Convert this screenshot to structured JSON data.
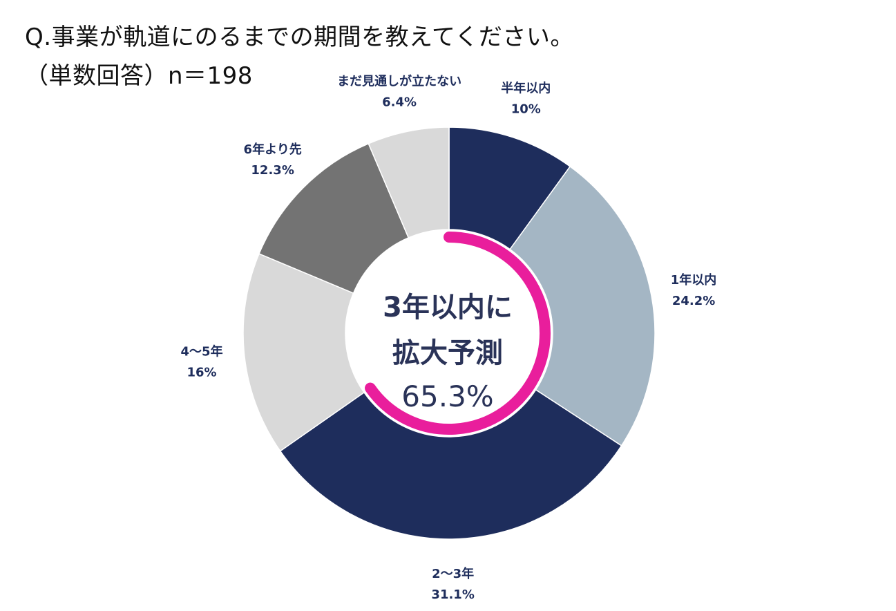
{
  "title": {
    "line1": "Q.事業が軌道にのるまでの期間を教えてください。",
    "line2": "（単数回答）n＝198"
  },
  "chart_data": {
    "type": "pie",
    "variant": "donut",
    "categories": [
      "半年以内",
      "1年以内",
      "2〜3年",
      "4〜5年",
      "6年より先",
      "まだ見通しが立たない"
    ],
    "values": [
      10,
      24.2,
      31.1,
      16,
      12.3,
      6.4
    ],
    "value_labels": [
      "10%",
      "24.2%",
      "31.1%",
      "16%",
      "12.3%",
      "6.4%"
    ],
    "colors": [
      "#1e2d5c",
      "#a4b6c4",
      "#1e2d5c",
      "#d9d9d9",
      "#737373",
      "#d9d9d9"
    ],
    "label_color": "#1e2d5c",
    "start_angle_deg": 0,
    "direction": "clockwise",
    "highlight": {
      "color": "#e91e9c",
      "covers_categories": [
        "半年以内",
        "1年以内",
        "2〜3年"
      ],
      "value": 65.3
    },
    "center_text": {
      "line1": "3年以内に",
      "line2": "拡大予測",
      "line3": "65.3%"
    }
  }
}
